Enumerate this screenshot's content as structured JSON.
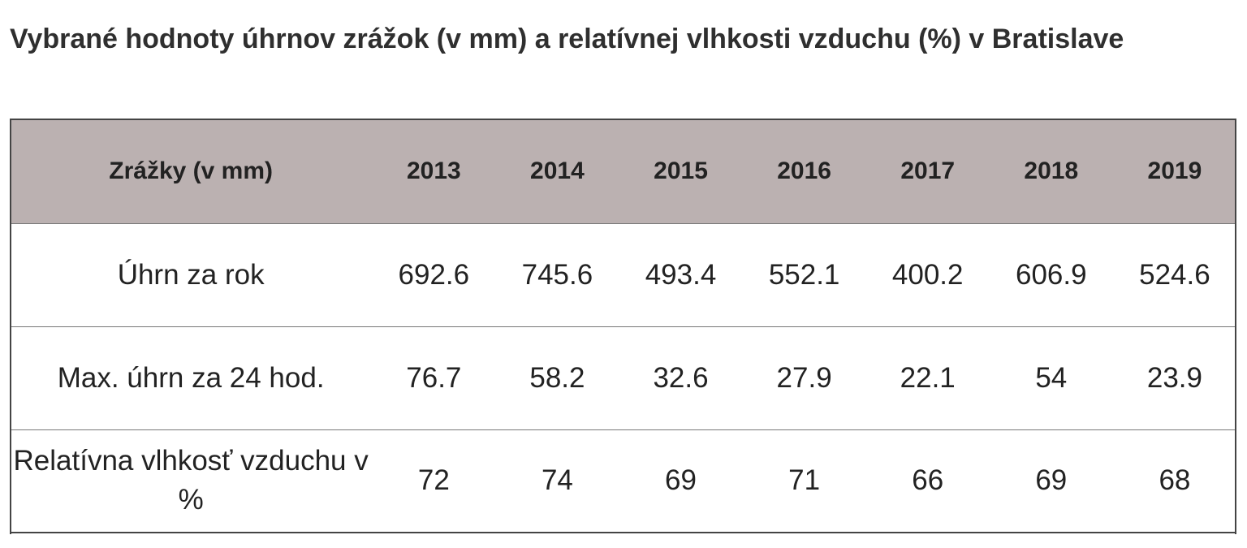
{
  "title": "Vybrané hodnoty úhrnov zrážok (v mm) a relatívnej vlhkosti vzduchu (%) v Bratislave",
  "table": {
    "header_label": "Zrážky (v mm)",
    "years": [
      "2013",
      "2014",
      "2015",
      "2016",
      "2017",
      "2018",
      "2019"
    ],
    "rows": [
      {
        "label": "Úhrn za rok",
        "values": [
          "692.6",
          "745.6",
          "493.4",
          "552.1",
          "400.2",
          "606.9",
          "524.6"
        ]
      },
      {
        "label": "Max. úhrn za 24 hod.",
        "values": [
          "76.7",
          "58.2",
          "32.6",
          "27.9",
          "22.1",
          "54",
          "23.9"
        ]
      },
      {
        "label": "Relatívna vlhkosť vzduchu v %",
        "values": [
          "72",
          "74",
          "69",
          "71",
          "66",
          "69",
          "68"
        ]
      }
    ]
  },
  "colors": {
    "header_background": "#bbb1b1",
    "border": "#444444",
    "text": "#222222"
  }
}
